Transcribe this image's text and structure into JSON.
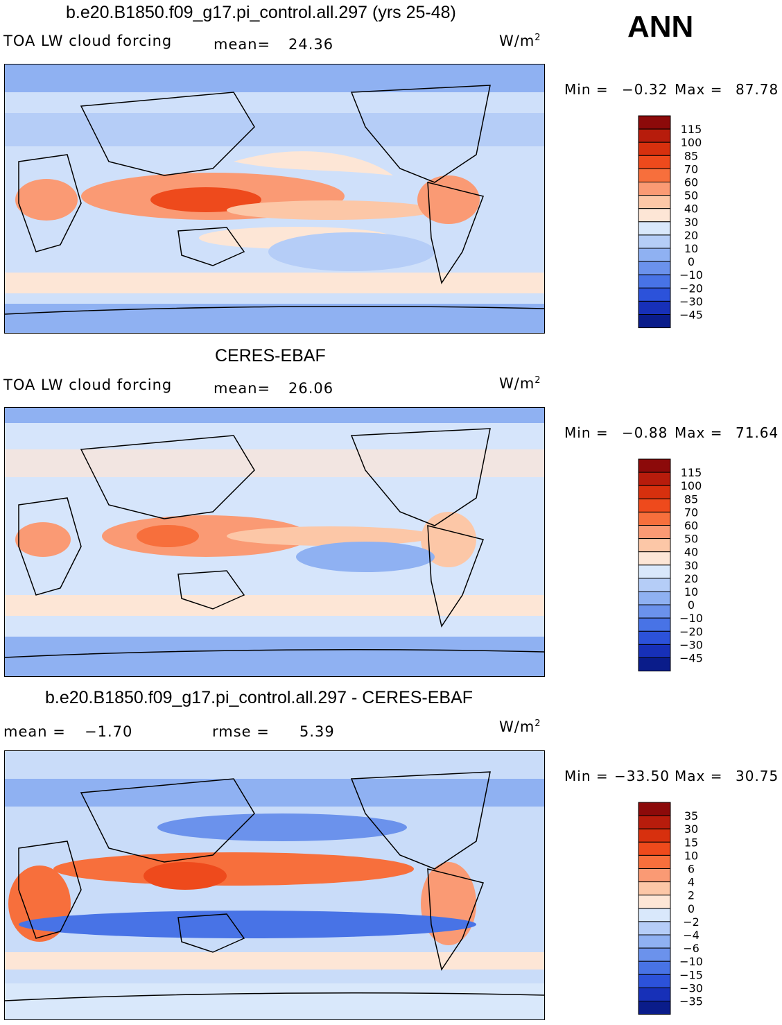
{
  "page": {
    "season": "ANN"
  },
  "chart_data": [
    {
      "type": "heatmap",
      "title": "b.e20.B1850.f09_g17.pi_control.all.297 (yrs 25-48)",
      "left_label": "TOA LW cloud forcing",
      "stat_label": "mean=",
      "stat_value": "24.36",
      "units_base": "W/m",
      "units_exp": "2",
      "min_label": "Min =",
      "min_value": "−0.32",
      "max_label": "Max =",
      "max_value": "87.78",
      "colorbar_levels": [
        "115",
        "100",
        "85",
        "70",
        "60",
        "50",
        "40",
        "30",
        "20",
        "10",
        "0",
        "−10",
        "−20",
        "−30",
        "−45"
      ],
      "colorbar_colors": [
        "#8c0a0a",
        "#b71c0c",
        "#d7300e",
        "#ee4a1c",
        "#f76f3c",
        "#fa9a74",
        "#fcc7a7",
        "#fde6d6",
        "#d9e8fb",
        "#b5cdf7",
        "#8fb1f2",
        "#6b92ec",
        "#4873e6",
        "#2c52da",
        "#1730b8",
        "#0a1c8a"
      ],
      "field_base": "#cfe0fa"
    },
    {
      "type": "heatmap",
      "title": "CERES-EBAF",
      "left_label": "TOA LW cloud forcing",
      "stat_label": "mean=",
      "stat_value": "26.06",
      "units_base": "W/m",
      "units_exp": "2",
      "min_label": "Min =",
      "min_value": "−0.88",
      "max_label": "Max =",
      "max_value": "71.64",
      "colorbar_levels": [
        "115",
        "100",
        "85",
        "70",
        "60",
        "50",
        "40",
        "30",
        "20",
        "10",
        "0",
        "−10",
        "−20",
        "−30",
        "−45"
      ],
      "colorbar_colors": [
        "#8c0a0a",
        "#b71c0c",
        "#d7300e",
        "#ee4a1c",
        "#f76f3c",
        "#fa9a74",
        "#fcc7a7",
        "#fde6d6",
        "#d9e8fb",
        "#b5cdf7",
        "#8fb1f2",
        "#6b92ec",
        "#4873e6",
        "#2c52da",
        "#1730b8",
        "#0a1c8a"
      ],
      "field_base": "#d6e5fb"
    },
    {
      "type": "heatmap",
      "title": "b.e20.B1850.f09_g17.pi_control.all.297 - CERES-EBAF",
      "left_label": "mean =",
      "left_value": "−1.70",
      "stat_label": "rmse =",
      "stat_value": "5.39",
      "units_base": "W/m",
      "units_exp": "2",
      "min_label": "Min =",
      "min_value": "−33.50",
      "max_label": "Max =",
      "max_value": "30.75",
      "colorbar_levels": [
        "35",
        "30",
        "15",
        "10",
        "6",
        "4",
        "2",
        "0",
        "−2",
        "−4",
        "−6",
        "−10",
        "−15",
        "−30",
        "−35"
      ],
      "colorbar_colors": [
        "#8c0a0a",
        "#b71c0c",
        "#d7300e",
        "#ee4a1c",
        "#f76f3c",
        "#fa9a74",
        "#fcc7a7",
        "#fde6d6",
        "#d9e8fb",
        "#b5cdf7",
        "#8fb1f2",
        "#6b92ec",
        "#4873e6",
        "#2c52da",
        "#1730b8",
        "#0a1c8a"
      ],
      "field_base": "#c9dcf9"
    }
  ]
}
